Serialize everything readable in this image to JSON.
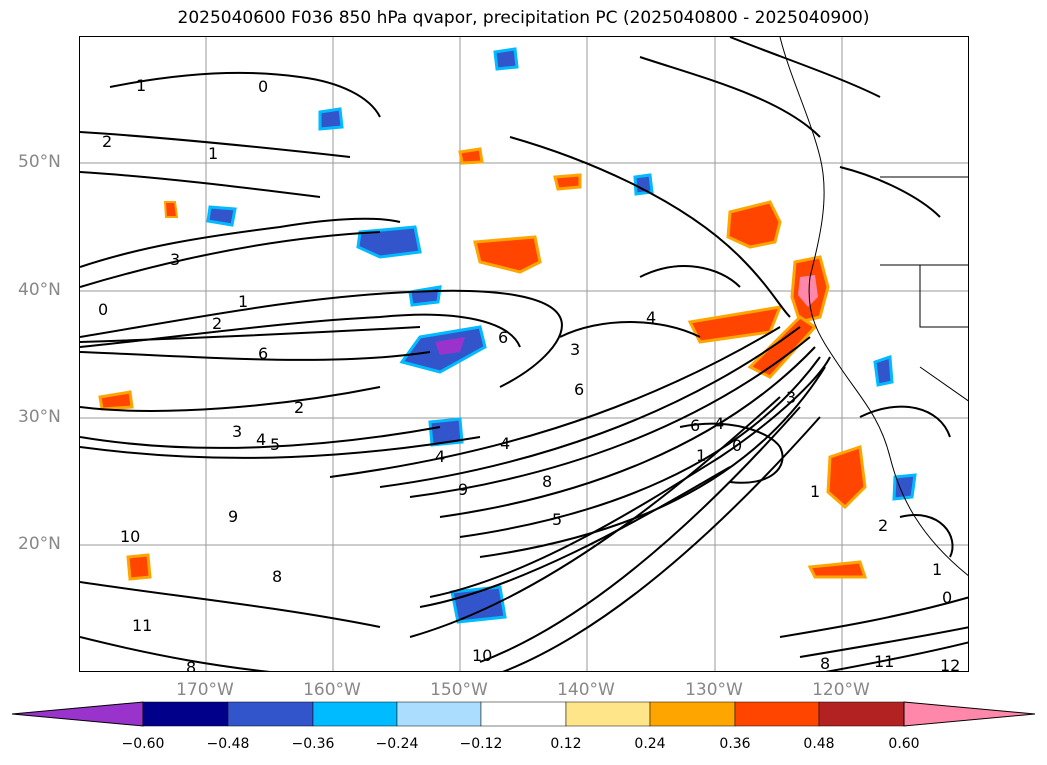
{
  "title": "2025040600 F036 850 hPa qvapor, precipitation PC (2025040800 - 2025040900)",
  "map": {
    "lat_labels": [
      "50°N",
      "40°N",
      "30°N",
      "20°N"
    ],
    "lon_labels": [
      "170°W",
      "160°W",
      "150°W",
      "140°W",
      "130°W",
      "120°W"
    ],
    "contour_labels": [
      "1",
      "0",
      "2",
      "1",
      "3",
      "1",
      "0",
      "2",
      "6",
      "2",
      "3",
      "4",
      "5",
      "4",
      "9",
      "8",
      "5",
      "6",
      "4",
      "6",
      "3",
      "4",
      "6",
      "4",
      "1",
      "0",
      "3",
      "9",
      "10",
      "8",
      "8",
      "1",
      "2",
      "1",
      "0",
      "10",
      "11",
      "8",
      "11",
      "12"
    ],
    "anomaly_features": [
      {
        "kind": "positive",
        "level": 0.48
      },
      {
        "kind": "positive",
        "level": 0.6
      },
      {
        "kind": "negative",
        "level": -0.6
      },
      {
        "kind": "negative",
        "level": -0.36
      }
    ]
  },
  "colorbar": {
    "ticks": [
      "−0.60",
      "−0.48",
      "−0.36",
      "−0.24",
      "−0.12",
      "0.12",
      "0.24",
      "0.36",
      "0.48",
      "0.60"
    ],
    "colors": [
      "#9933cc",
      "#00008b",
      "#3355cc",
      "#00bbff",
      "#aaddff",
      "#ffffff",
      "#ffe58a",
      "#ffa500",
      "#ff4500",
      "#b22222",
      "#ff88aa",
      "#ff88aa"
    ],
    "under_color": "#9933cc",
    "over_color": "#ff88aa"
  }
}
